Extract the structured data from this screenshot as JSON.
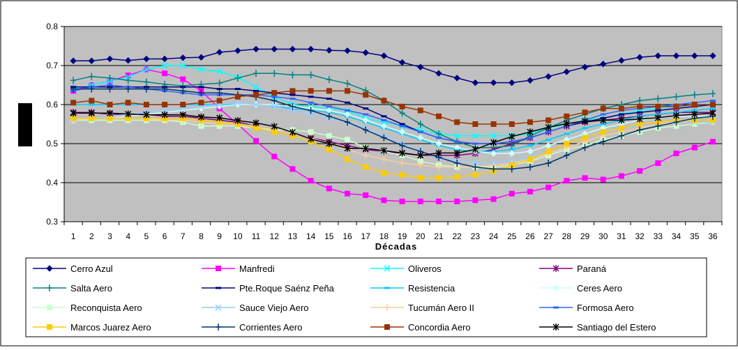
{
  "chart_data": {
    "type": "line",
    "xlabel": "Décadas",
    "ylabel": "",
    "ylim": [
      0.3,
      0.8
    ],
    "yticks": [
      "0.8",
      "0.7",
      "0.6",
      "0.5",
      "0.4",
      "0.3"
    ],
    "categories": [
      "1",
      "2",
      "3",
      "4",
      "5",
      "6",
      "7",
      "8",
      "9",
      "10",
      "11",
      "12",
      "13",
      "14",
      "15",
      "16",
      "17",
      "18",
      "19",
      "20",
      "21",
      "22",
      "23",
      "24",
      "25",
      "26",
      "27",
      "28",
      "29",
      "30",
      "31",
      "32",
      "33",
      "34",
      "35",
      "36"
    ],
    "grid": true,
    "background": "#c0c0c0",
    "legend_position": "bottom",
    "series": [
      {
        "name": "Cerro Azul",
        "color": "#000080",
        "marker": "diamond",
        "values": [
          0.712,
          0.712,
          0.717,
          0.713,
          0.717,
          0.717,
          0.72,
          0.721,
          0.734,
          0.738,
          0.742,
          0.742,
          0.742,
          0.742,
          0.739,
          0.738,
          0.733,
          0.725,
          0.708,
          0.696,
          0.68,
          0.668,
          0.656,
          0.656,
          0.656,
          0.662,
          0.672,
          0.684,
          0.696,
          0.704,
          0.713,
          0.721,
          0.725,
          0.725,
          0.725,
          0.725
        ]
      },
      {
        "name": "Manfredi",
        "color": "#ff00ff",
        "marker": "square",
        "values": [
          0.635,
          0.65,
          0.66,
          0.675,
          0.69,
          0.68,
          0.665,
          0.635,
          0.59,
          0.55,
          0.507,
          0.467,
          0.435,
          0.405,
          0.385,
          0.372,
          0.368,
          0.355,
          0.352,
          0.352,
          0.352,
          0.352,
          0.355,
          0.358,
          0.372,
          0.377,
          0.388,
          0.405,
          0.412,
          0.408,
          0.417,
          0.43,
          0.45,
          0.475,
          0.49,
          0.505
        ]
      },
      {
        "name": "Oliveros",
        "color": "#00ffff",
        "marker": "x",
        "values": [
          0.64,
          0.65,
          0.66,
          0.67,
          0.69,
          0.7,
          0.7,
          0.69,
          0.685,
          0.67,
          0.645,
          0.62,
          0.6,
          0.595,
          0.59,
          0.585,
          0.565,
          0.555,
          0.545,
          0.535,
          0.525,
          0.52,
          0.52,
          0.52,
          0.52,
          0.525,
          0.54,
          0.55,
          0.56,
          0.565,
          0.575,
          0.585,
          0.59,
          0.595,
          0.6,
          0.6
        ]
      },
      {
        "name": "Paraná",
        "color": "#800080",
        "marker": "star",
        "values": [
          0.58,
          0.58,
          0.575,
          0.575,
          0.575,
          0.57,
          0.57,
          0.565,
          0.56,
          0.555,
          0.545,
          0.535,
          0.525,
          0.515,
          0.505,
          0.495,
          0.485,
          0.48,
          0.475,
          0.47,
          0.47,
          0.47,
          0.475,
          0.485,
          0.5,
          0.515,
          0.53,
          0.545,
          0.555,
          0.56,
          0.565,
          0.57,
          0.575,
          0.58,
          0.58,
          0.58
        ]
      },
      {
        "name": "Salta Aero",
        "color": "#008080",
        "marker": "plus",
        "values": [
          0.662,
          0.672,
          0.668,
          0.662,
          0.658,
          0.652,
          0.648,
          0.652,
          0.655,
          0.668,
          0.68,
          0.68,
          0.676,
          0.676,
          0.664,
          0.654,
          0.636,
          0.61,
          0.578,
          0.55,
          0.525,
          0.505,
          0.49,
          0.49,
          0.495,
          0.52,
          0.54,
          0.56,
          0.575,
          0.59,
          0.6,
          0.61,
          0.615,
          0.62,
          0.625,
          0.628
        ]
      },
      {
        "name": "Pte.Roque Saénz Peña",
        "color": "#000080",
        "marker": "dash",
        "values": [
          0.645,
          0.645,
          0.645,
          0.645,
          0.645,
          0.645,
          0.645,
          0.645,
          0.64,
          0.64,
          0.635,
          0.63,
          0.625,
          0.62,
          0.615,
          0.605,
          0.59,
          0.57,
          0.55,
          0.53,
          0.515,
          0.505,
          0.5,
          0.5,
          0.505,
          0.515,
          0.53,
          0.545,
          0.555,
          0.565,
          0.575,
          0.58,
          0.585,
          0.59,
          0.595,
          0.6
        ]
      },
      {
        "name": "Resistencia",
        "color": "#00ccff",
        "marker": "dash",
        "values": [
          0.6,
          0.6,
          0.6,
          0.6,
          0.6,
          0.6,
          0.6,
          0.6,
          0.6,
          0.6,
          0.6,
          0.595,
          0.59,
          0.585,
          0.58,
          0.57,
          0.555,
          0.54,
          0.525,
          0.51,
          0.495,
          0.485,
          0.48,
          0.48,
          0.485,
          0.495,
          0.51,
          0.525,
          0.54,
          0.55,
          0.56,
          0.57,
          0.575,
          0.58,
          0.585,
          0.59
        ]
      },
      {
        "name": "Ceres Aero",
        "color": "#ccffff",
        "marker": "diamond",
        "values": [
          0.56,
          0.565,
          0.565,
          0.57,
          0.575,
          0.58,
          0.585,
          0.59,
          0.595,
          0.6,
          0.6,
          0.6,
          0.595,
          0.59,
          0.585,
          0.575,
          0.56,
          0.545,
          0.53,
          0.515,
          0.5,
          0.49,
          0.48,
          0.475,
          0.475,
          0.48,
          0.495,
          0.51,
          0.525,
          0.54,
          0.55,
          0.56,
          0.565,
          0.57,
          0.57,
          0.57
        ]
      },
      {
        "name": "Reconquista Aero",
        "color": "#ccffcc",
        "marker": "square",
        "values": [
          0.56,
          0.56,
          0.56,
          0.56,
          0.56,
          0.56,
          0.555,
          0.545,
          0.545,
          0.545,
          0.54,
          0.535,
          0.535,
          0.53,
          0.52,
          0.51,
          0.49,
          0.48,
          0.47,
          0.455,
          0.445,
          0.44,
          0.44,
          0.44,
          0.445,
          0.455,
          0.47,
          0.485,
          0.495,
          0.51,
          0.52,
          0.53,
          0.54,
          0.545,
          0.55,
          0.555
        ]
      },
      {
        "name": "Sauce Viejo Aero",
        "color": "#99ccff",
        "marker": "x",
        "values": [
          0.56,
          0.565,
          0.57,
          0.575,
          0.58,
          0.585,
          0.59,
          0.595,
          0.6,
          0.605,
          0.6,
          0.595,
          0.585,
          0.575,
          0.565,
          0.555,
          0.54,
          0.52,
          0.5,
          0.48,
          0.465,
          0.455,
          0.45,
          0.45,
          0.455,
          0.465,
          0.48,
          0.5,
          0.515,
          0.53,
          0.54,
          0.545,
          0.55,
          0.555,
          0.555,
          0.555
        ]
      },
      {
        "name": "Tucumán Aero II",
        "color": "#ffcc99",
        "marker": "plus",
        "values": [
          0.56,
          0.565,
          0.565,
          0.565,
          0.565,
          0.56,
          0.56,
          0.555,
          0.55,
          0.55,
          0.545,
          0.535,
          0.525,
          0.515,
          0.5,
          0.485,
          0.47,
          0.46,
          0.45,
          0.445,
          0.44,
          0.44,
          0.44,
          0.445,
          0.45,
          0.46,
          0.475,
          0.49,
          0.505,
          0.52,
          0.53,
          0.54,
          0.55,
          0.555,
          0.56,
          0.56
        ]
      },
      {
        "name": "Formosa Aero",
        "color": "#3366ff",
        "marker": "dash",
        "values": [
          0.635,
          0.645,
          0.65,
          0.645,
          0.64,
          0.635,
          0.63,
          0.625,
          0.625,
          0.625,
          0.625,
          0.62,
          0.615,
          0.605,
          0.595,
          0.585,
          0.575,
          0.56,
          0.545,
          0.53,
          0.515,
          0.505,
          0.5,
          0.5,
          0.505,
          0.515,
          0.53,
          0.545,
          0.56,
          0.575,
          0.585,
          0.59,
          0.595,
          0.6,
          0.605,
          0.61
        ]
      },
      {
        "name": "Marcos Juarez Aero",
        "color": "#ffcc00",
        "marker": "square",
        "values": [
          0.565,
          0.565,
          0.565,
          0.565,
          0.565,
          0.565,
          0.565,
          0.56,
          0.555,
          0.55,
          0.54,
          0.53,
          0.52,
          0.505,
          0.485,
          0.46,
          0.44,
          0.425,
          0.42,
          0.412,
          0.412,
          0.415,
          0.42,
          0.43,
          0.445,
          0.46,
          0.48,
          0.5,
          0.515,
          0.53,
          0.54,
          0.55,
          0.555,
          0.56,
          0.56,
          0.56
        ]
      },
      {
        "name": "Corrientes Aero",
        "color": "#003366",
        "marker": "plus",
        "values": [
          0.64,
          0.64,
          0.64,
          0.64,
          0.64,
          0.64,
          0.635,
          0.63,
          0.63,
          0.625,
          0.62,
          0.61,
          0.595,
          0.585,
          0.57,
          0.555,
          0.535,
          0.515,
          0.495,
          0.48,
          0.465,
          0.45,
          0.44,
          0.435,
          0.435,
          0.44,
          0.45,
          0.47,
          0.49,
          0.505,
          0.52,
          0.535,
          0.545,
          0.555,
          0.565,
          0.57
        ]
      },
      {
        "name": "Concordia Aero",
        "color": "#993300",
        "marker": "square",
        "values": [
          0.605,
          0.61,
          0.6,
          0.605,
          0.6,
          0.6,
          0.6,
          0.605,
          0.61,
          0.62,
          0.625,
          0.63,
          0.635,
          0.635,
          0.635,
          0.635,
          0.625,
          0.61,
          0.595,
          0.585,
          0.57,
          0.555,
          0.55,
          0.55,
          0.55,
          0.555,
          0.56,
          0.57,
          0.58,
          0.59,
          0.59,
          0.595,
          0.595,
          0.595,
          0.6,
          0.6
        ]
      },
      {
        "name": "Santiago del Estero",
        "color": "#000000",
        "marker": "star",
        "values": [
          0.578,
          0.578,
          0.578,
          0.576,
          0.574,
          0.574,
          0.574,
          0.568,
          0.566,
          0.559,
          0.553,
          0.544,
          0.529,
          0.512,
          0.5,
          0.488,
          0.488,
          0.482,
          0.476,
          0.47,
          0.476,
          0.476,
          0.485,
          0.503,
          0.518,
          0.53,
          0.542,
          0.551,
          0.558,
          0.56,
          0.56,
          0.563,
          0.566,
          0.572,
          0.575,
          0.578
        ]
      }
    ]
  }
}
